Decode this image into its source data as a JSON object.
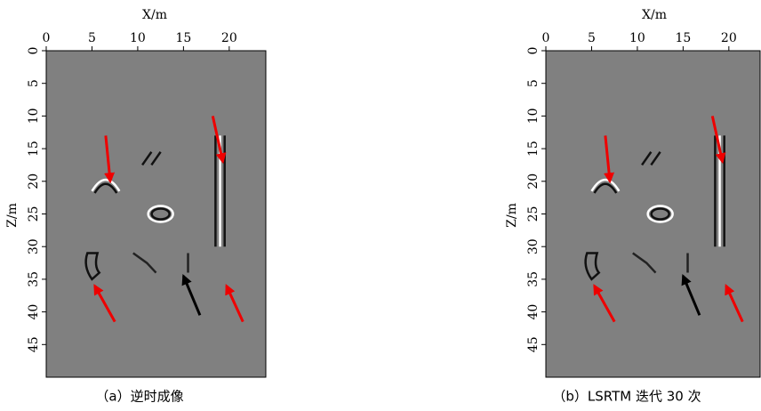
{
  "panels": [
    {
      "caption": "（a）逆时成像",
      "x_label": "X/m",
      "y_label": "Z/m",
      "xlim": [
        0,
        24
      ],
      "ylim": [
        0,
        50
      ],
      "xticks": [
        0,
        5,
        10,
        15,
        20
      ],
      "yticks": [
        0,
        5,
        10,
        15,
        20,
        25,
        30,
        35,
        40,
        45
      ]
    },
    {
      "caption": "（b）LSRTM 迭代 30 次",
      "x_label": "X/m",
      "y_label": "Z/m",
      "xlim": [
        0,
        24
      ],
      "ylim": [
        0,
        50
      ],
      "xticks": [
        0,
        5,
        10,
        15,
        20
      ],
      "yticks": [
        0,
        5,
        10,
        15,
        20,
        25,
        30,
        35,
        40,
        45
      ]
    }
  ]
}
